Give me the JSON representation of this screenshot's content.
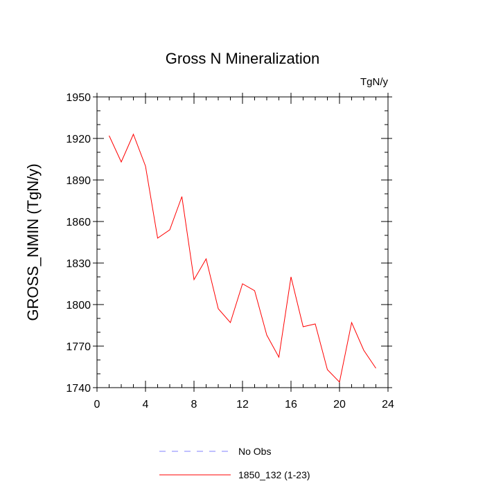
{
  "chart_data": {
    "type": "line",
    "title": "Gross N Mineralization",
    "units_label": "TgN/y",
    "xlabel": "",
    "ylabel": "GROSS_NMIN  (TgN/y)",
    "xlim": [
      0,
      24
    ],
    "ylim": [
      1740,
      1950
    ],
    "x_ticks": [
      0,
      4,
      8,
      12,
      16,
      20,
      24
    ],
    "y_ticks": [
      1740,
      1770,
      1800,
      1830,
      1860,
      1890,
      1920,
      1950
    ],
    "grid": false,
    "legend_position": "bottom",
    "series": [
      {
        "name": "No Obs",
        "color": "#8080ff",
        "style": "dashed",
        "x": [],
        "values": []
      },
      {
        "name": "1850_132 (1-23)",
        "color": "#ff0000",
        "style": "solid",
        "x": [
          1,
          2,
          3,
          4,
          5,
          6,
          7,
          8,
          9,
          10,
          11,
          12,
          13,
          14,
          15,
          16,
          17,
          18,
          19,
          20,
          21,
          22,
          23
        ],
        "values": [
          1922,
          1903,
          1923,
          1900,
          1848,
          1854,
          1878,
          1818,
          1833,
          1797,
          1787,
          1815,
          1810,
          1778,
          1762,
          1820,
          1784,
          1786,
          1753,
          1744,
          1787,
          1767,
          1754
        ]
      }
    ]
  }
}
